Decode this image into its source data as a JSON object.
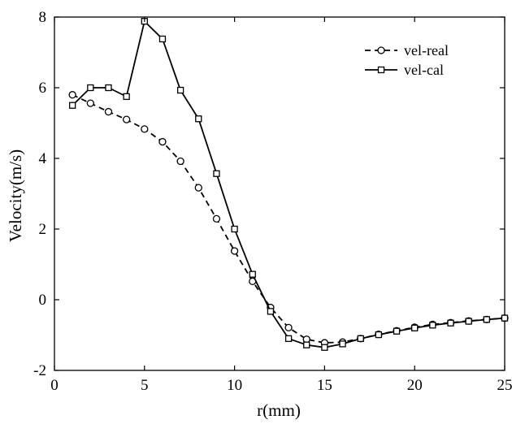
{
  "chart_data": {
    "type": "line",
    "xlabel": "r(mm)",
    "ylabel": "Velocity(m/s)",
    "xlim": [
      0,
      25
    ],
    "ylim": [
      -2,
      8
    ],
    "xticks": [
      "0",
      "5",
      "10",
      "15",
      "20",
      "25"
    ],
    "yticks": [
      "-2",
      "0",
      "2",
      "4",
      "6",
      "8"
    ],
    "grid": false,
    "legend_position": "top-right",
    "series": [
      {
        "name": "vel-real",
        "line_style": "dashed",
        "marker": "circle",
        "color": "#000000",
        "x": [
          1,
          2,
          3,
          4,
          5,
          6,
          7,
          8,
          9,
          10,
          11,
          12,
          13,
          14,
          15,
          16,
          17,
          18,
          19,
          20,
          21,
          22,
          23,
          24,
          25
        ],
        "y": [
          5.8,
          5.56,
          5.32,
          5.1,
          4.83,
          4.47,
          3.92,
          3.17,
          2.29,
          1.38,
          0.52,
          -0.22,
          -0.79,
          -1.12,
          -1.22,
          -1.2,
          -1.1,
          -0.98,
          -0.88,
          -0.78,
          -0.7,
          -0.65,
          -0.6,
          -0.56,
          -0.52
        ]
      },
      {
        "name": "vel-cal",
        "line_style": "solid",
        "marker": "square",
        "color": "#000000",
        "x": [
          1,
          2,
          3,
          4,
          5,
          6,
          7,
          8,
          9,
          10,
          11,
          12,
          13,
          14,
          15,
          16,
          17,
          18,
          19,
          20,
          21,
          22,
          23,
          24,
          25
        ],
        "y": [
          5.5,
          6.0,
          6.0,
          5.75,
          7.88,
          7.38,
          5.93,
          5.12,
          3.57,
          2.0,
          0.72,
          -0.33,
          -1.1,
          -1.28,
          -1.35,
          -1.25,
          -1.1,
          -0.99,
          -0.89,
          -0.8,
          -0.72,
          -0.66,
          -0.61,
          -0.56,
          -0.52
        ]
      }
    ]
  }
}
